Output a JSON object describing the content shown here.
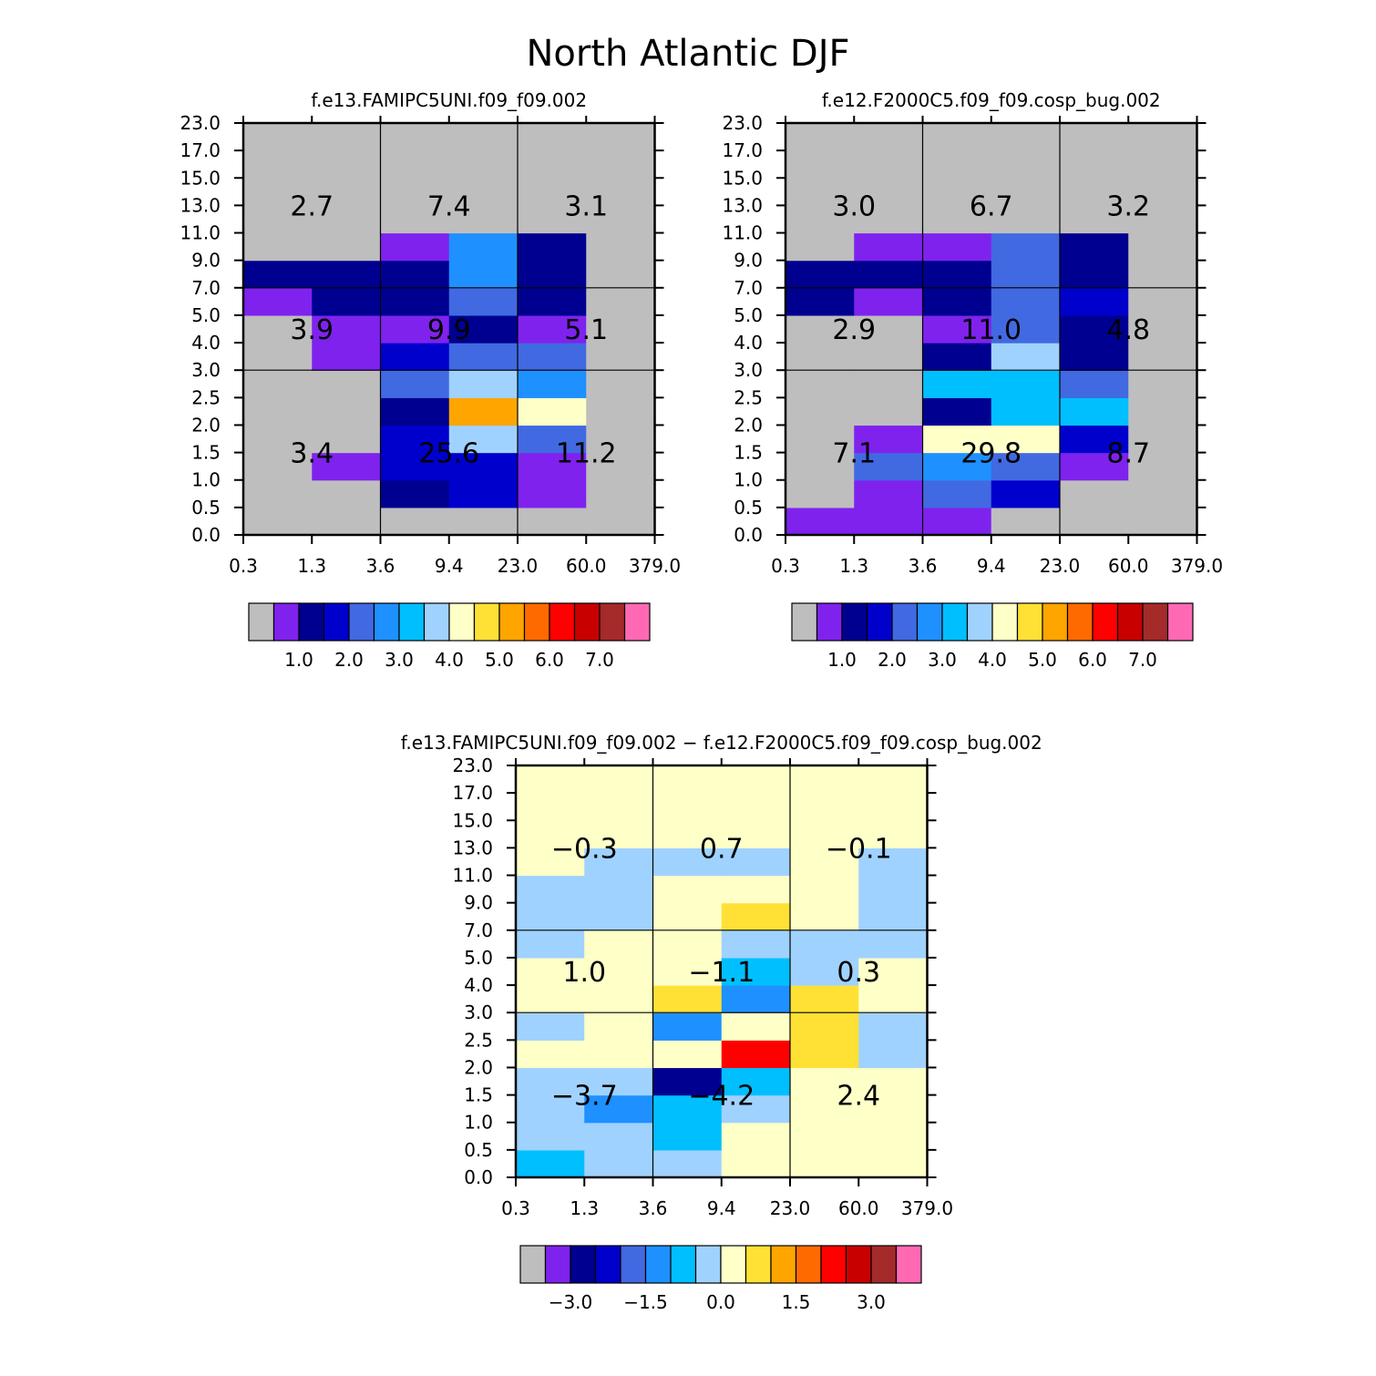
{
  "title": "North Atlantic DJF",
  "colors": [
    "#bebebe",
    "#7f22ee",
    "#000090",
    "#0000cd",
    "#4169e1",
    "#1e90ff",
    "#00bfff",
    "#a0d2ff",
    "#ffffc8",
    "#ffe135",
    "#ffa500",
    "#ff6a00",
    "#ff0000",
    "#c80000",
    "#a52a2a",
    "#ff69b4"
  ],
  "chart_data": [
    {
      "type": "heatmap",
      "title": "f.e13.FAMIPC5UNI.f09_f09.002",
      "xticks": [
        "0.3",
        "1.3",
        "3.6",
        "9.4",
        "23.0",
        "60.0",
        "379.0"
      ],
      "yticks": [
        "0.0",
        "0.5",
        "1.0",
        "1.5",
        "2.0",
        "2.5",
        "3.0",
        "4.0",
        "5.0",
        "7.0",
        "9.0",
        "11.0",
        "13.0",
        "15.0",
        "17.0",
        "23.0"
      ],
      "cells": [
        [
          0,
          0,
          0,
          0,
          0,
          0
        ],
        [
          0,
          0,
          2,
          3,
          1,
          0
        ],
        [
          0,
          1,
          3,
          3,
          1,
          0
        ],
        [
          0,
          0,
          3,
          7,
          4,
          0
        ],
        [
          0,
          0,
          2,
          10,
          8,
          0
        ],
        [
          0,
          0,
          4,
          7,
          5,
          0
        ],
        [
          0,
          1,
          3,
          4,
          4,
          0
        ],
        [
          0,
          1,
          1,
          2,
          1,
          0
        ],
        [
          1,
          2,
          2,
          4,
          2,
          0
        ],
        [
          2,
          2,
          2,
          5,
          2,
          0
        ],
        [
          0,
          0,
          1,
          5,
          2,
          0
        ],
        [
          0,
          0,
          0,
          0,
          0,
          0
        ],
        [
          0,
          0,
          0,
          0,
          0,
          0
        ],
        [
          0,
          0,
          0,
          0,
          0,
          0
        ],
        [
          0,
          0,
          0,
          0,
          0,
          0
        ]
      ],
      "region_values": [
        [
          "3.4",
          "25.6",
          "11.2"
        ],
        [
          "3.9",
          "9.9",
          "5.1"
        ],
        [
          "2.7",
          "7.4",
          "3.1"
        ]
      ],
      "legend": {
        "labels": [
          "1.0",
          "2.0",
          "3.0",
          "4.0",
          "5.0",
          "6.0",
          "7.0"
        ]
      }
    },
    {
      "type": "heatmap",
      "title": "f.e12.F2000C5.f09_f09.cosp_bug.002",
      "xticks": [
        "0.3",
        "1.3",
        "3.6",
        "9.4",
        "23.0",
        "60.0",
        "379.0"
      ],
      "yticks": [
        "0.0",
        "0.5",
        "1.0",
        "1.5",
        "2.0",
        "2.5",
        "3.0",
        "4.0",
        "5.0",
        "7.0",
        "9.0",
        "11.0",
        "13.0",
        "15.0",
        "17.0",
        "23.0"
      ],
      "cells": [
        [
          1,
          1,
          1,
          0,
          0,
          0
        ],
        [
          0,
          1,
          4,
          3,
          0,
          0
        ],
        [
          0,
          4,
          5,
          4,
          1,
          0
        ],
        [
          0,
          1,
          8,
          8,
          3,
          0
        ],
        [
          0,
          0,
          2,
          6,
          6,
          0
        ],
        [
          0,
          0,
          6,
          6,
          4,
          0
        ],
        [
          0,
          0,
          2,
          7,
          2,
          0
        ],
        [
          0,
          0,
          1,
          4,
          2,
          0
        ],
        [
          2,
          1,
          2,
          4,
          3,
          0
        ],
        [
          2,
          2,
          2,
          4,
          2,
          0
        ],
        [
          0,
          1,
          1,
          4,
          2,
          0
        ],
        [
          0,
          0,
          0,
          0,
          0,
          0
        ],
        [
          0,
          0,
          0,
          0,
          0,
          0
        ],
        [
          0,
          0,
          0,
          0,
          0,
          0
        ],
        [
          0,
          0,
          0,
          0,
          0,
          0
        ]
      ],
      "region_values": [
        [
          "7.1",
          "29.8",
          "8.7"
        ],
        [
          "2.9",
          "11.0",
          "4.8"
        ],
        [
          "3.0",
          "6.7",
          "3.2"
        ]
      ],
      "legend": {
        "labels": [
          "1.0",
          "2.0",
          "3.0",
          "4.0",
          "5.0",
          "6.0",
          "7.0"
        ]
      }
    },
    {
      "type": "heatmap",
      "title": "f.e13.FAMIPC5UNI.f09_f09.002 − f.e12.F2000C5.f09_f09.cosp_bug.002",
      "xticks": [
        "0.3",
        "1.3",
        "3.6",
        "9.4",
        "23.0",
        "60.0",
        "379.0"
      ],
      "yticks": [
        "0.0",
        "0.5",
        "1.0",
        "1.5",
        "2.0",
        "2.5",
        "3.0",
        "4.0",
        "5.0",
        "7.0",
        "9.0",
        "11.0",
        "13.0",
        "15.0",
        "17.0",
        "23.0"
      ],
      "cells": [
        [
          6,
          7,
          7,
          8,
          8,
          8
        ],
        [
          7,
          7,
          6,
          8,
          8,
          8
        ],
        [
          7,
          5,
          6,
          7,
          8,
          8
        ],
        [
          7,
          7,
          2,
          6,
          8,
          8
        ],
        [
          8,
          8,
          8,
          12,
          9,
          7
        ],
        [
          7,
          8,
          5,
          8,
          9,
          7
        ],
        [
          8,
          8,
          9,
          5,
          9,
          8
        ],
        [
          8,
          8,
          8,
          6,
          7,
          8
        ],
        [
          7,
          8,
          8,
          7,
          7,
          7
        ],
        [
          7,
          7,
          8,
          9,
          8,
          7
        ],
        [
          7,
          7,
          8,
          8,
          8,
          7
        ],
        [
          8,
          7,
          7,
          7,
          8,
          7
        ],
        [
          8,
          8,
          8,
          8,
          8,
          8
        ],
        [
          8,
          8,
          8,
          8,
          8,
          8
        ],
        [
          8,
          8,
          8,
          8,
          8,
          8
        ]
      ],
      "region_values": [
        [
          "−3.7",
          "−4.2",
          "2.4"
        ],
        [
          "1.0",
          "−1.1",
          "0.3"
        ],
        [
          "−0.3",
          "0.7",
          "−0.1"
        ]
      ],
      "legend": {
        "labels": [
          "−3.0",
          "−1.5",
          "0.0",
          "1.5",
          "3.0"
        ]
      }
    }
  ]
}
